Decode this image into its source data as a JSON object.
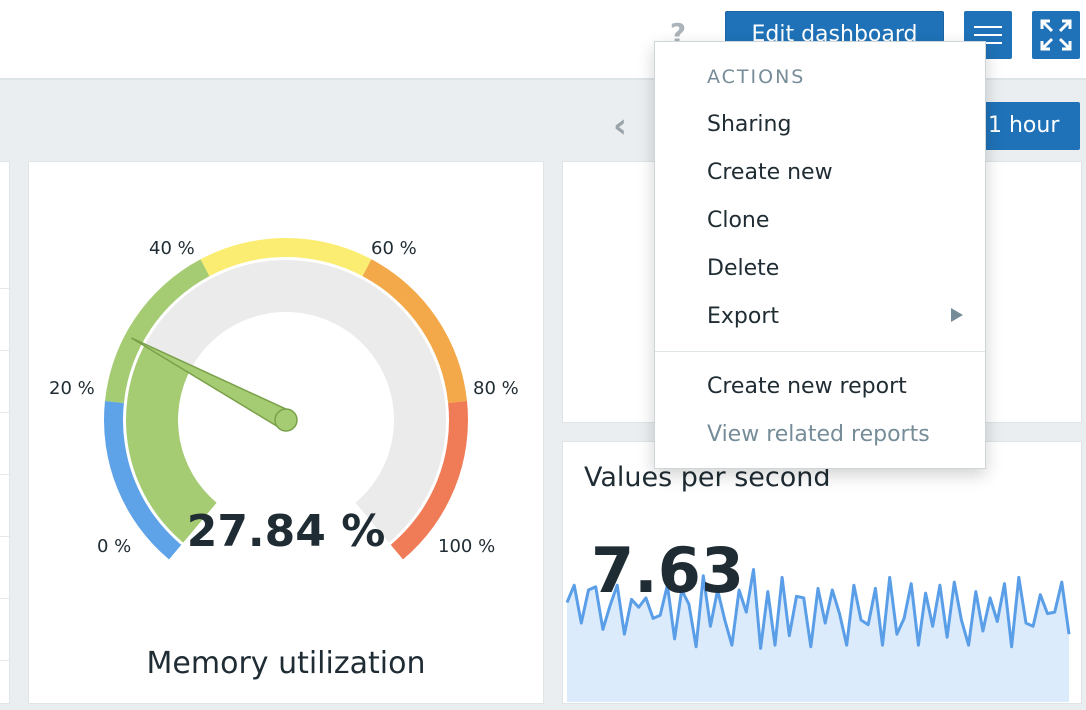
{
  "header": {
    "help_icon": "?",
    "edit_label": "Edit dashboard",
    "menu_icon": "hamburger-icon",
    "kiosk_icon": "fullscreen-icon"
  },
  "timebar": {
    "prev_icon": "‹",
    "period_label": "1 hour"
  },
  "gauge_widget": {
    "title": "Memory utilization",
    "value_text": "27.84 %",
    "value": 27.84,
    "min": 0,
    "max": 100,
    "ticks": [
      "0 %",
      "20 %",
      "40 %",
      "60 %",
      "80 %",
      "100 %"
    ],
    "thresholds": [
      {
        "from": 0,
        "to": 20,
        "color": "#5ea2e8"
      },
      {
        "from": 20,
        "to": 40,
        "color": "#a5cc72"
      },
      {
        "from": 40,
        "to": 60,
        "color": "#fbed72"
      },
      {
        "from": 60,
        "to": 80,
        "color": "#f3a94a"
      },
      {
        "from": 80,
        "to": 100,
        "color": "#ef7c56"
      }
    ],
    "value_color": "#a5cc72",
    "track_color": "#ebebeb"
  },
  "vps_widget": {
    "title": "Values per second",
    "value": "7.63",
    "line_color": "#5a9ee8",
    "fill_color": "#dcebfb",
    "sparkline": [
      6.3,
      7.4,
      5.0,
      7.1,
      7.3,
      4.6,
      6.1,
      7.4,
      4.3,
      6.5,
      6.0,
      6.6,
      5.3,
      5.5,
      7.4,
      4.0,
      7.1,
      6.2,
      3.5,
      8.0,
      4.8,
      7.1,
      5.2,
      3.6,
      7.1,
      5.7,
      8.4,
      3.4,
      7.0,
      3.6,
      7.9,
      4.2,
      6.7,
      6.6,
      3.5,
      7.2,
      5.0,
      7.1,
      5.6,
      3.6,
      7.4,
      5.2,
      4.9,
      7.2,
      3.6,
      7.9,
      4.3,
      5.3,
      7.5,
      3.6,
      6.9,
      4.8,
      7.4,
      4.1,
      7.6,
      5.2,
      3.6,
      7.0,
      4.5,
      6.6,
      5.1,
      7.5,
      3.5,
      7.9,
      5.0,
      4.8,
      6.8,
      5.6,
      5.7,
      7.6,
      4.3
    ]
  },
  "actions_menu": {
    "header": "ACTIONS",
    "items": [
      {
        "label": "Sharing"
      },
      {
        "label": "Create new"
      },
      {
        "label": "Clone"
      },
      {
        "label": "Delete"
      },
      {
        "label": "Export"
      },
      {
        "label": "Create new report"
      },
      {
        "label": "View related reports"
      }
    ]
  }
}
